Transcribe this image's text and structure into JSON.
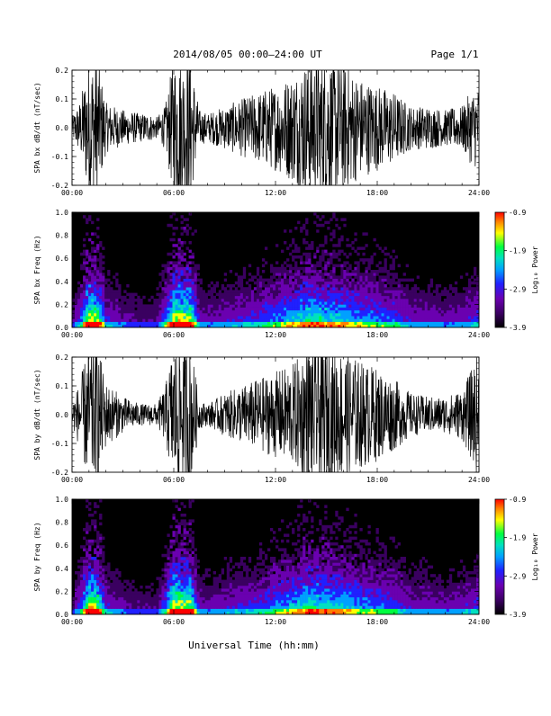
{
  "header": {
    "title": "2014/08/05  00:00–24:00 UT",
    "page": "Page 1/1"
  },
  "footer": {
    "xlabel": "Universal Time (hh:mm)"
  },
  "colors": {
    "trace": "#000000",
    "spectrogram_background": "#000000",
    "colormap": [
      "#000000",
      "#3a0060",
      "#6a00b0",
      "#2020ff",
      "#00a0ff",
      "#00e0c0",
      "#00ff40",
      "#ffff00",
      "#ff8000",
      "#ff0000"
    ]
  },
  "chart_data": [
    {
      "type": "line",
      "ylabel": "SPA bx dB/dt (nT/sec)",
      "xticks": [
        "00:00",
        "06:00",
        "12:00",
        "18:00",
        "24:00"
      ],
      "xlim": [
        0,
        24
      ],
      "ylim": [
        -0.2,
        0.2
      ],
      "yticks": [
        "-0.2",
        "-0.1",
        "0.0",
        "0.1",
        "0.2"
      ],
      "x_units": "hours UT",
      "envelope": {
        "hours": [
          0,
          0.5,
          1,
          1.5,
          2,
          3,
          4,
          4.5,
          5,
          5.5,
          6,
          6.5,
          7,
          7.5,
          8,
          9,
          10,
          11,
          12,
          13,
          14,
          15,
          16,
          17,
          18,
          19,
          20,
          21,
          22,
          23,
          23.5,
          24
        ],
        "amplitude": [
          0.03,
          0.08,
          0.2,
          0.2,
          0.07,
          0.05,
          0.04,
          0.04,
          0.03,
          0.06,
          0.2,
          0.2,
          0.2,
          0.05,
          0.04,
          0.06,
          0.08,
          0.1,
          0.12,
          0.15,
          0.2,
          0.2,
          0.18,
          0.14,
          0.12,
          0.1,
          0.06,
          0.06,
          0.05,
          0.06,
          0.1,
          0.12
        ]
      }
    },
    {
      "type": "heatmap",
      "ylabel": "SPA bx Freq (Hz)",
      "xticks": [
        "00:00",
        "06:00",
        "12:00",
        "18:00",
        "24:00"
      ],
      "xlim": [
        0,
        24
      ],
      "ylim": [
        0,
        1.0
      ],
      "yticks": [
        "0.0",
        "0.2",
        "0.4",
        "0.6",
        "0.8",
        "1.0"
      ],
      "colorbar": {
        "label": "Log₁₀ Power",
        "ticks": [
          "-0.9",
          "-1.9",
          "-2.9",
          "-3.9"
        ],
        "range": [
          -3.9,
          -0.9
        ]
      },
      "activity": {
        "hours": [
          0,
          0.5,
          1,
          1.5,
          2,
          3,
          4,
          4.5,
          5,
          5.5,
          6,
          6.5,
          7,
          7.5,
          8,
          9,
          10,
          11,
          12,
          13,
          14,
          15,
          16,
          17,
          18,
          19,
          20,
          21,
          22,
          23,
          23.5,
          24
        ],
        "level": [
          0.15,
          0.4,
          0.95,
          0.9,
          0.35,
          0.25,
          0.2,
          0.2,
          0.2,
          0.45,
          0.95,
          0.95,
          0.9,
          0.3,
          0.25,
          0.3,
          0.35,
          0.4,
          0.5,
          0.6,
          0.75,
          0.7,
          0.65,
          0.55,
          0.5,
          0.45,
          0.3,
          0.3,
          0.25,
          0.3,
          0.35,
          0.4
        ]
      }
    },
    {
      "type": "line",
      "ylabel": "SPA by dB/dt (nT/sec)",
      "xticks": [
        "00:00",
        "06:00",
        "12:00",
        "18:00",
        "24:00"
      ],
      "xlim": [
        0,
        24
      ],
      "ylim": [
        -0.2,
        0.2
      ],
      "yticks": [
        "-0.2",
        "-0.1",
        "0.0",
        "0.1",
        "0.2"
      ],
      "x_units": "hours UT",
      "envelope": {
        "hours": [
          0,
          0.5,
          1,
          1.5,
          2,
          3,
          4,
          4.5,
          5,
          5.5,
          6,
          6.5,
          7,
          7.5,
          8,
          9,
          10,
          11,
          12,
          13,
          14,
          15,
          16,
          17,
          18,
          19,
          20,
          21,
          22,
          23,
          23.5,
          24
        ],
        "amplitude": [
          0.03,
          0.1,
          0.2,
          0.2,
          0.09,
          0.05,
          0.03,
          0.03,
          0.03,
          0.08,
          0.2,
          0.2,
          0.2,
          0.04,
          0.03,
          0.06,
          0.08,
          0.1,
          0.12,
          0.14,
          0.2,
          0.2,
          0.18,
          0.15,
          0.13,
          0.1,
          0.06,
          0.05,
          0.05,
          0.07,
          0.12,
          0.18
        ]
      }
    },
    {
      "type": "heatmap",
      "ylabel": "SPA by Freq (Hz)",
      "xticks": [
        "00:00",
        "06:00",
        "12:00",
        "18:00",
        "24:00"
      ],
      "xlim": [
        0,
        24
      ],
      "ylim": [
        0,
        1.0
      ],
      "yticks": [
        "0.0",
        "0.2",
        "0.4",
        "0.6",
        "0.8",
        "1.0"
      ],
      "colorbar": {
        "label": "Log₁₀ Power",
        "ticks": [
          "-0.9",
          "-1.9",
          "-2.9",
          "-3.9"
        ],
        "range": [
          -3.9,
          -0.9
        ]
      },
      "activity": {
        "hours": [
          0,
          0.5,
          1,
          1.5,
          2,
          3,
          4,
          4.5,
          5,
          5.5,
          6,
          6.5,
          7,
          7.5,
          8,
          9,
          10,
          11,
          12,
          13,
          14,
          15,
          16,
          17,
          18,
          19,
          20,
          21,
          22,
          23,
          23.5,
          24
        ],
        "level": [
          0.15,
          0.4,
          0.95,
          0.9,
          0.35,
          0.25,
          0.2,
          0.2,
          0.2,
          0.45,
          0.95,
          0.95,
          0.9,
          0.3,
          0.25,
          0.3,
          0.35,
          0.4,
          0.5,
          0.6,
          0.75,
          0.7,
          0.65,
          0.55,
          0.5,
          0.45,
          0.3,
          0.3,
          0.25,
          0.3,
          0.35,
          0.4
        ]
      }
    }
  ]
}
